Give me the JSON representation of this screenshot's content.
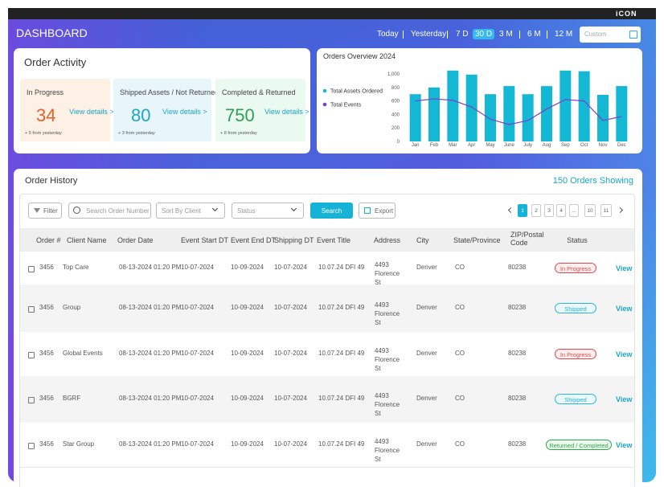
{
  "header": {
    "logo": "iCON",
    "title": "DASHBOARD",
    "ranges": [
      "Today",
      "Yesterday",
      "7 D",
      "30 D",
      "3 M",
      "6 M",
      "12 M"
    ],
    "active_range": "30 D",
    "custom": "Custom"
  },
  "order_activity": {
    "title": "Order Activity",
    "cards": [
      {
        "label": "In Progress",
        "value": 34,
        "link": "View details >",
        "note": "+ 5 from yesterday",
        "color": "#e0622a",
        "bg": "#fdf1e6"
      },
      {
        "label": "Shipped Assets / Not Returned",
        "value": 80,
        "link": "View details >",
        "note": "+ 3 from yesterday",
        "color": "#1aa6c8",
        "bg": "#e8f6fb"
      },
      {
        "label": "Completed & Returned",
        "value": 750,
        "link": "View details >",
        "note": "+ 8 from yesterday",
        "color": "#2e9e58",
        "bg": "#eafaf0"
      }
    ]
  },
  "chart_data": {
    "type": "bar",
    "title": "Orders Overview 2024",
    "categories": [
      "Jan",
      "Feb",
      "Mar",
      "Apr",
      "May",
      "June",
      "July",
      "Aug",
      "Sep",
      "Oct",
      "Nov",
      "Dec"
    ],
    "series": [
      {
        "name": "Total Assets Ordered",
        "type": "bar",
        "color": "#14b8d4",
        "values": [
          700,
          800,
          1050,
          990,
          700,
          820,
          700,
          820,
          1050,
          1040,
          690,
          820
        ]
      },
      {
        "name": "Total Events",
        "type": "line",
        "color": "#7b3fc8",
        "values": [
          600,
          630,
          610,
          510,
          330,
          250,
          310,
          480,
          620,
          600,
          310,
          370
        ]
      }
    ],
    "ylim": [
      0,
      1100
    ],
    "yticks": [
      0,
      200,
      400,
      600,
      800,
      {
        "value": 1000,
        "label": "1,000"
      }
    ],
    "grid": false
  },
  "order_history": {
    "title": "Order History",
    "count": "150 Orders Showing",
    "toolbar": {
      "filter": "Filter",
      "search_placeholder": "Search Order Number",
      "sort": "Sort By Client",
      "status": "Status",
      "search": "Search",
      "export": "Export"
    },
    "pages": [
      "1",
      "2",
      "3",
      "4",
      "...",
      "10",
      "11"
    ],
    "active_page": "1",
    "columns": [
      "Order #",
      "Client Name",
      "Order Date",
      "Event Start DT",
      "Event End DT",
      "Shipping DT",
      "Event Title",
      "Address",
      "City",
      "State/Province",
      "ZIP/Postal Code",
      "Status"
    ],
    "rows": [
      [
        "3456",
        "Top Care",
        "08-13-2024 01:20 PM",
        "10-07-2024",
        "10-09-2024",
        "10-07-2024",
        "10.07.24 DFI 49",
        "4493 Florence St",
        "Denver",
        "CO",
        "80238",
        "In Progress",
        "View"
      ],
      [
        "3456",
        "Group",
        "08-13-2024 01:20 PM",
        "10-07-2024",
        "10-09-2024",
        "10-07-2024",
        "10.07.24 DFI 49",
        "4493 Florence St",
        "Denver",
        "CO",
        "80238",
        "Shipped",
        "View"
      ],
      [
        "3456",
        "Global Events",
        "08-13-2024 01:20 PM",
        "10-07-2024",
        "10-09-2024",
        "10-07-2024",
        "10.07.24 DFI 49",
        "4493 Florence St",
        "Denver",
        "CO",
        "80238",
        "In Progress",
        "View"
      ],
      [
        "3456",
        "BGRF",
        "08-13-2024 01:20 PM",
        "10-07-2024",
        "10-09-2024",
        "10-07-2024",
        "10.07.24 DFI 49",
        "4493 Florence St",
        "Denver",
        "CO",
        "80238",
        "Shipped",
        "View"
      ],
      [
        "3456",
        "Star Group",
        "08-13-2024 01:20 PM",
        "10-07-2024",
        "10-09-2024",
        "10-07-2024",
        "10.07.24 DFI 49",
        "4493 Florence St",
        "Denver",
        "CO",
        "80238",
        "Returned / Completed",
        "View"
      ]
    ]
  }
}
